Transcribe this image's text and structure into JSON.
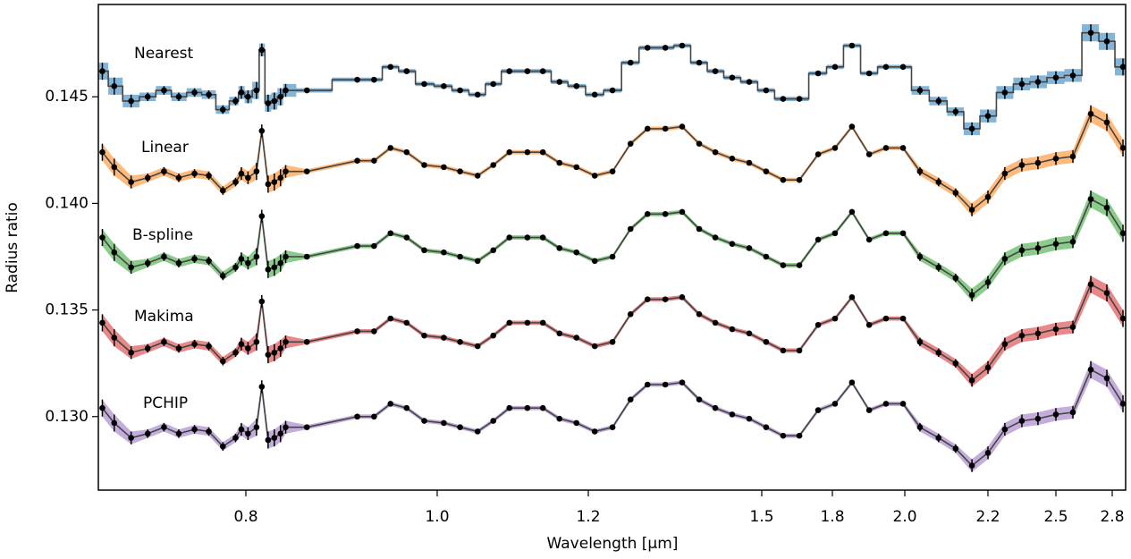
{
  "chart_data": {
    "type": "scatter",
    "xlabel": "Wavelength [μm]",
    "ylabel": "Radius ratio",
    "xlim": [
      0.68,
      2.87
    ],
    "ylim": [
      0.12655,
      0.14933
    ],
    "xticks": [
      0.8,
      {
        "value": 1,
        "label": "1.0"
      },
      1.2,
      1.5,
      1.8,
      {
        "value": 2,
        "label": "2.0"
      },
      2.2,
      2.5,
      2.8
    ],
    "yticks": [
      {
        "value": 0.13,
        "label": "0.130"
      },
      0.135,
      {
        "value": 0.14,
        "label": "0.140"
      },
      0.145
    ],
    "x": [
      0.683,
      0.692,
      0.705,
      0.718,
      0.731,
      0.743,
      0.756,
      0.768,
      0.78,
      0.791,
      0.796,
      0.802,
      0.81,
      0.815,
      0.821,
      0.827,
      0.833,
      0.838,
      0.859,
      0.911,
      0.929,
      0.947,
      0.965,
      0.985,
      1.008,
      1.028,
      1.05,
      1.07,
      1.091,
      1.115,
      1.136,
      1.159,
      1.183,
      1.21,
      1.238,
      1.267,
      1.295,
      1.325,
      1.354,
      1.384,
      1.413,
      1.444,
      1.476,
      1.517,
      1.585,
      1.653,
      1.735,
      1.807,
      1.852,
      1.899,
      1.946,
      1.995,
      2.035,
      2.079,
      2.12,
      2.16,
      2.2,
      2.271,
      2.345,
      2.417,
      2.5,
      2.587,
      2.682,
      2.77,
      2.856
    ],
    "errors": [
      0.0004,
      0.0004,
      0.0003,
      0.0002,
      0.0002,
      0.0002,
      0.0002,
      0.0002,
      0.0002,
      0.0002,
      0.0003,
      0.0003,
      0.0004,
      0.0003,
      0.0004,
      0.0004,
      0.0004,
      0.0003,
      0.0001,
      0.0001,
      0.0001,
      0.0001,
      0.0001,
      0.0001,
      0.0001,
      0.0001,
      0.0001,
      0.0001,
      0.0001,
      0.0001,
      0.0001,
      0.0001,
      0.0001,
      0.0001,
      0.0001,
      0.0001,
      0.0001,
      0.0001,
      0.0001,
      0.0001,
      0.0001,
      0.0001,
      0.0001,
      0.0001,
      0.0001,
      0.0001,
      0.0001,
      0.0001,
      0.0001,
      0.0001,
      0.0001,
      0.0001,
      0.0002,
      0.0002,
      0.0002,
      0.0003,
      0.0003,
      0.0003,
      0.0003,
      0.0003,
      0.0003,
      0.0003,
      0.0004,
      0.0004,
      0.0004
    ],
    "series": [
      {
        "name": "Nearest",
        "color": "#1f77b4",
        "step": true,
        "values": [
          0.1462,
          0.1455,
          0.1448,
          0.145,
          0.1453,
          0.145,
          0.1452,
          0.1451,
          0.1444,
          0.1448,
          0.1452,
          0.145,
          0.1453,
          0.1472,
          0.1447,
          0.1448,
          0.145,
          0.1453,
          0.1453,
          0.1458,
          0.1458,
          0.1464,
          0.1462,
          0.1456,
          0.1455,
          0.1453,
          0.1451,
          0.1456,
          0.1462,
          0.1462,
          0.1462,
          0.1457,
          0.1455,
          0.1451,
          0.1453,
          0.1466,
          0.1473,
          0.1473,
          0.1474,
          0.1466,
          0.1462,
          0.1459,
          0.1457,
          0.1453,
          0.1449,
          0.1449,
          0.1461,
          0.1464,
          0.1474,
          0.1461,
          0.1464,
          0.1464,
          0.1453,
          0.1448,
          0.1443,
          0.1435,
          0.1441,
          0.1452,
          0.1456,
          0.1457,
          0.1459,
          0.146,
          0.148,
          0.1476,
          0.1464
        ]
      },
      {
        "name": "Linear",
        "color": "#ff7f0e",
        "values": [
          0.1424,
          0.1417,
          0.141,
          0.1412,
          0.1415,
          0.1412,
          0.1414,
          0.1413,
          0.1406,
          0.141,
          0.1414,
          0.1412,
          0.1415,
          0.1434,
          0.1409,
          0.141,
          0.1412,
          0.1415,
          0.1415,
          0.142,
          0.142,
          0.1426,
          0.1424,
          0.1418,
          0.1417,
          0.1415,
          0.1413,
          0.1418,
          0.1424,
          0.1424,
          0.1424,
          0.1419,
          0.1417,
          0.1413,
          0.1415,
          0.1428,
          0.1435,
          0.1435,
          0.1436,
          0.1428,
          0.1424,
          0.1421,
          0.1419,
          0.1415,
          0.1411,
          0.1411,
          0.1423,
          0.1426,
          0.1436,
          0.1423,
          0.1426,
          0.1426,
          0.1415,
          0.141,
          0.1405,
          0.1397,
          0.1403,
          0.1414,
          0.1418,
          0.1419,
          0.1421,
          0.1422,
          0.1442,
          0.1438,
          0.1426
        ]
      },
      {
        "name": "B-spline",
        "color": "#2ca02c",
        "values": [
          0.1384,
          0.1377,
          0.137,
          0.1372,
          0.1375,
          0.1372,
          0.1374,
          0.1373,
          0.1366,
          0.137,
          0.1374,
          0.1372,
          0.1375,
          0.1394,
          0.1369,
          0.137,
          0.1372,
          0.1375,
          0.1375,
          0.138,
          0.138,
          0.1386,
          0.1384,
          0.1378,
          0.1377,
          0.1375,
          0.1373,
          0.1378,
          0.1384,
          0.1384,
          0.1384,
          0.1379,
          0.1377,
          0.1373,
          0.1375,
          0.1388,
          0.1395,
          0.1395,
          0.1396,
          0.1388,
          0.1384,
          0.1381,
          0.1379,
          0.1375,
          0.1371,
          0.1371,
          0.1383,
          0.1386,
          0.1396,
          0.1383,
          0.1386,
          0.1386,
          0.1375,
          0.137,
          0.1365,
          0.1357,
          0.1363,
          0.1374,
          0.1378,
          0.1379,
          0.1381,
          0.1382,
          0.1402,
          0.1398,
          0.1386
        ]
      },
      {
        "name": "Makima",
        "color": "#d62728",
        "values": [
          0.1344,
          0.1337,
          0.133,
          0.1332,
          0.1335,
          0.1332,
          0.1334,
          0.1333,
          0.1326,
          0.133,
          0.1334,
          0.1332,
          0.1335,
          0.1354,
          0.1329,
          0.133,
          0.1332,
          0.1335,
          0.1335,
          0.134,
          0.134,
          0.1346,
          0.1344,
          0.1338,
          0.1337,
          0.1335,
          0.1333,
          0.1338,
          0.1344,
          0.1344,
          0.1344,
          0.1339,
          0.1337,
          0.1333,
          0.1335,
          0.1348,
          0.1355,
          0.1355,
          0.1356,
          0.1348,
          0.1344,
          0.1341,
          0.1339,
          0.1335,
          0.1331,
          0.1331,
          0.1343,
          0.1346,
          0.1356,
          0.1343,
          0.1346,
          0.1346,
          0.1335,
          0.133,
          0.1325,
          0.1317,
          0.1323,
          0.1334,
          0.1338,
          0.1339,
          0.1341,
          0.1342,
          0.1362,
          0.1358,
          0.1346
        ]
      },
      {
        "name": "PCHIP",
        "color": "#9467bd",
        "values": [
          0.1304,
          0.1297,
          0.129,
          0.1292,
          0.1295,
          0.1292,
          0.1294,
          0.1293,
          0.1286,
          0.129,
          0.1294,
          0.1292,
          0.1295,
          0.1314,
          0.1289,
          0.129,
          0.1292,
          0.1295,
          0.1295,
          0.13,
          0.13,
          0.1306,
          0.1304,
          0.1298,
          0.1297,
          0.1295,
          0.1293,
          0.1298,
          0.1304,
          0.1304,
          0.1304,
          0.1299,
          0.1297,
          0.1293,
          0.1295,
          0.1308,
          0.1315,
          0.1315,
          0.1316,
          0.1308,
          0.1304,
          0.1301,
          0.1299,
          0.1295,
          0.1291,
          0.1291,
          0.1303,
          0.1306,
          0.1316,
          0.1303,
          0.1306,
          0.1306,
          0.1295,
          0.129,
          0.1285,
          0.1277,
          0.1283,
          0.1294,
          0.1298,
          0.1299,
          0.1301,
          0.1302,
          0.1322,
          0.1318,
          0.1306
        ]
      }
    ]
  }
}
